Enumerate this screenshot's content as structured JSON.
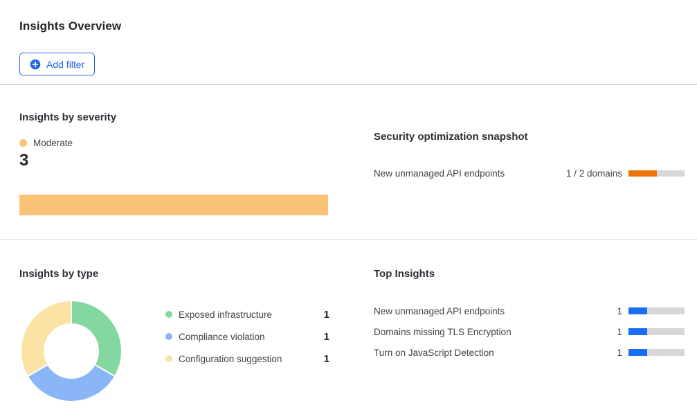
{
  "header": {
    "title": "Insights Overview"
  },
  "toolbar": {
    "add_filter": "Add filter"
  },
  "severity": {
    "heading": "Insights by severity",
    "legend_label": "Moderate",
    "count": "3"
  },
  "snapshot": {
    "heading": "Security optimization snapshot",
    "row_label": "New unmanaged API endpoints",
    "row_value": "1 / 2 domains"
  },
  "by_type": {
    "heading": "Insights by type",
    "items": [
      {
        "label": "Exposed infrastructure",
        "count": "1"
      },
      {
        "label": "Compliance violation",
        "count": "1"
      },
      {
        "label": "Configuration suggestion",
        "count": "1"
      }
    ]
  },
  "top_insights": {
    "heading": "Top Insights",
    "rows": [
      {
        "label": "New unmanaged API endpoints",
        "count": "1"
      },
      {
        "label": "Domains missing TLS Encryption",
        "count": "1"
      },
      {
        "label": "Turn on JavaScript Detection",
        "count": "1"
      }
    ]
  },
  "colors": {
    "accent_blue": "#2264E5",
    "severity_moderate": "#FBC377",
    "snapshot_orange": "#ED7309",
    "top_bar_blue": "#1A6EF5",
    "track_gray": "#D7D7D7",
    "type_green": "#85D7A0",
    "type_blue": "#8AB6F8",
    "type_yellow": "#FAE3A3",
    "divider_dark": "#B9B9B9",
    "divider_light": "#DFDFDF"
  },
  "chart_data": [
    {
      "type": "bar",
      "title": "Insights by severity",
      "orientation": "horizontal",
      "categories": [
        "Moderate"
      ],
      "values": [
        3
      ],
      "total": 3,
      "colors": [
        "#FBC377"
      ],
      "legend": [
        "Moderate"
      ],
      "legend_position": "top"
    },
    {
      "type": "pie",
      "title": "Insights by type",
      "labels": [
        "Exposed infrastructure",
        "Compliance violation",
        "Configuration suggestion"
      ],
      "values": [
        1,
        1,
        1
      ],
      "colors": [
        "#85D7A0",
        "#8AB6F8",
        "#FAE3A3"
      ],
      "donut": true,
      "legend_position": "right"
    },
    {
      "type": "bar",
      "title": "Top Insights",
      "orientation": "horizontal",
      "categories": [
        "New unmanaged API endpoints",
        "Domains missing TLS Encryption",
        "Turn on JavaScript Detection"
      ],
      "values": [
        1,
        1,
        1
      ],
      "max": 3,
      "color": "#1A6EF5",
      "track_color": "#D7D7D7"
    },
    {
      "type": "bar",
      "title": "Security optimization snapshot",
      "orientation": "horizontal",
      "categories": [
        "New unmanaged API endpoints"
      ],
      "values": [
        1
      ],
      "max": 2,
      "value_labels": [
        "1 / 2 domains"
      ],
      "color": "#ED7309",
      "track_color": "#D7D7D7"
    }
  ]
}
